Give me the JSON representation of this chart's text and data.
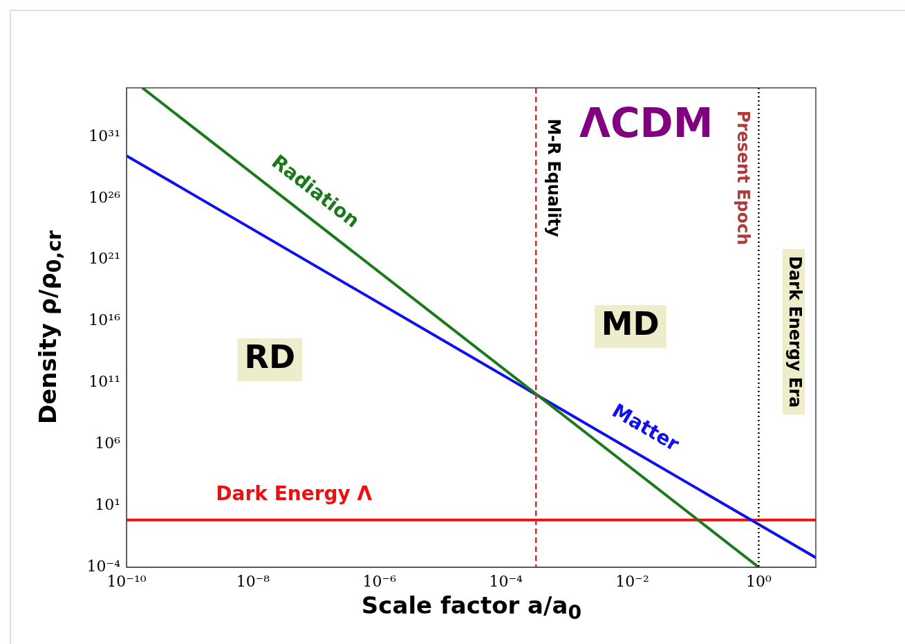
{
  "chart_data": {
    "type": "line",
    "xlabel": "Scale factor a/a$_{0}$",
    "ylabel": "Density ρ/ρ$_{0,cr}$",
    "log": "xy",
    "grid": false,
    "legend": false,
    "marker": "none",
    "line_style": "solid",
    "xlim": [
      1e-10,
      8
    ],
    "ylim": [
      0.0001,
      1e+35
    ],
    "xticks": [
      {
        "value": 1e-10,
        "label": "10⁻¹⁰"
      },
      {
        "value": 1e-08,
        "label": "10⁻⁸"
      },
      {
        "value": 1e-06,
        "label": "10⁻⁶"
      },
      {
        "value": 0.0001,
        "label": "10⁻⁴"
      },
      {
        "value": 0.01,
        "label": "10⁻²"
      },
      {
        "value": 1,
        "label": "10⁰"
      }
    ],
    "yticks": [
      {
        "value": 0.0001,
        "label": "10⁻⁴"
      },
      {
        "value": 10,
        "label": "10¹"
      },
      {
        "value": 1000000.0,
        "label": "10⁶"
      },
      {
        "value": 100000000000.0,
        "label": "10¹¹"
      },
      {
        "value": 1e+16,
        "label": "10¹⁶"
      },
      {
        "value": 1e+21,
        "label": "10²¹"
      },
      {
        "value": 1e+26,
        "label": "10²⁶"
      },
      {
        "value": 1e+31,
        "label": "10³¹"
      }
    ],
    "series": [
      {
        "color": "#1a7a1a",
        "x": [
          1.78e-10,
          1
        ],
        "values": [
          1e+35,
          0.0001
        ]
      },
      {
        "color": "#1010ee",
        "x": [
          1e-10,
          8
        ],
        "values": [
          3e+29,
          0.0006
        ]
      },
      {
        "color": "#ee1010",
        "x": [
          1e-10,
          8
        ],
        "values": [
          0.7,
          0.7
        ]
      }
    ],
    "ref_lines": [
      {
        "axis": "x",
        "value": 0.0003,
        "label": "M-R Equality",
        "color": "#b03a3a",
        "line_style": "dashed"
      },
      {
        "axis": "x",
        "value": 1,
        "label": "Present Epoch",
        "color": "#000000",
        "line_style": "dotted"
      }
    ],
    "annotations": [
      "ΛCDM",
      "Radiation",
      "Matter",
      "Dark Energy Λ",
      "RD",
      "MD",
      "Dark Energy Era"
    ]
  }
}
